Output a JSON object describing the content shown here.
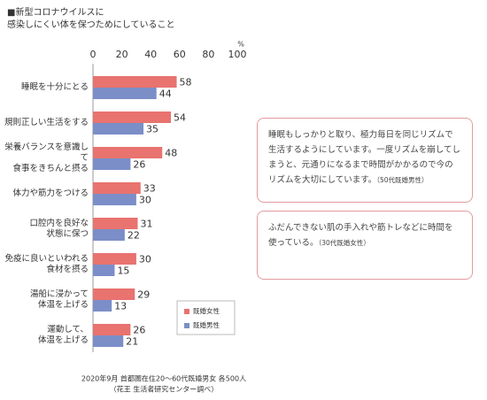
{
  "chart_data": {
    "type": "barh",
    "title": "■新型コロナウイルスに\n感染しにくい体を保つためにしていること",
    "x_unit": "%",
    "categories": [
      "睡眠を十分にとる",
      "規則正しい生活をする",
      "栄養バランスを意識して\n食事をきちんと摂る",
      "体力や筋力をつける",
      "口腔内を良好な\n状態に保つ",
      "免疫に良いといわれる\n食材を摂る",
      "湯船に浸かって\n体温を上げる",
      "運動して、\n体温を上げる"
    ],
    "series": [
      {
        "name": "既婚女性",
        "color": "#e8736f",
        "values": [
          58,
          54,
          48,
          33,
          31,
          30,
          29,
          26
        ]
      },
      {
        "name": "既婚男性",
        "color": "#7b8ec8",
        "values": [
          44,
          35,
          26,
          30,
          22,
          15,
          13,
          21
        ]
      }
    ],
    "xlim": [
      0,
      100
    ],
    "xticks": [
      0,
      20,
      40,
      60,
      80,
      100
    ],
    "source": [
      "2020年9月 首都圏在住20～60代既婚男女 各500人",
      "（花王 生活者研究センター調べ）"
    ]
  },
  "comments": [
    {
      "text": "睡眠もしっかりと取り、極力毎日を同じリズムで生活するようにしています。一度リズムを崩してしまうと、元通りになるまで時間がかかるので今のリズムを大切にしています。",
      "attribution": "（50代既婚男性）"
    },
    {
      "text": "ふだんできない肌の手入れや筋トレなどに時間を使っている。",
      "attribution": "（30代既婚女性）"
    }
  ]
}
